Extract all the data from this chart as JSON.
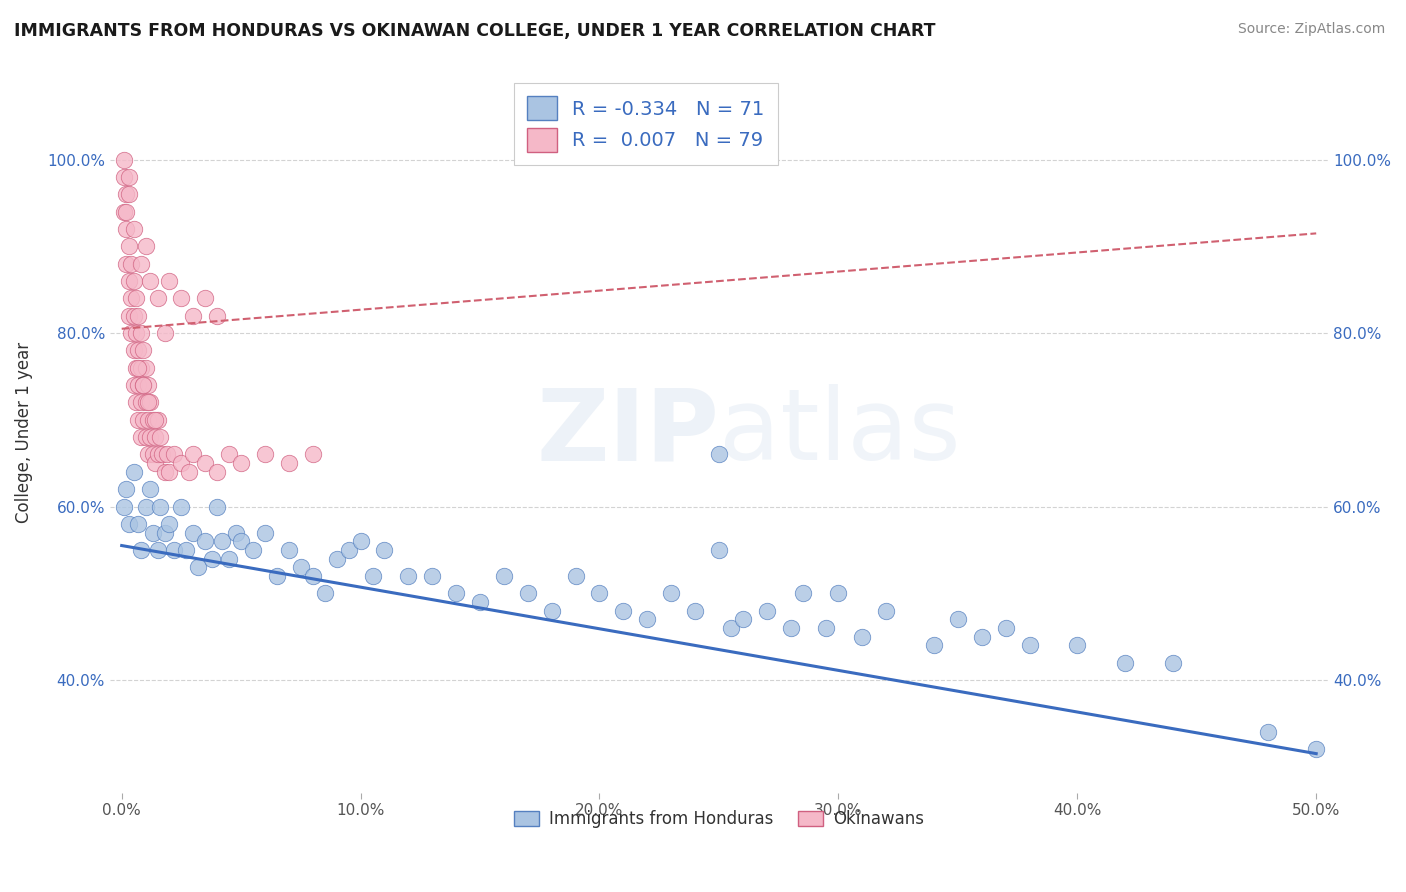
{
  "title": "IMMIGRANTS FROM HONDURAS VS OKINAWAN COLLEGE, UNDER 1 YEAR CORRELATION CHART",
  "source": "Source: ZipAtlas.com",
  "ylabel": "College, Under 1 year",
  "legend_label_blue": "Immigrants from Honduras",
  "legend_label_pink": "Okinawans",
  "R_blue": -0.334,
  "N_blue": 71,
  "R_pink": 0.007,
  "N_pink": 79,
  "xlim": [
    -0.005,
    0.505
  ],
  "ylim": [
    0.27,
    1.1
  ],
  "xticks": [
    0.0,
    0.1,
    0.2,
    0.3,
    0.4,
    0.5
  ],
  "xtick_labels": [
    "0.0%",
    "10.0%",
    "20.0%",
    "30.0%",
    "40.0%",
    "50.0%"
  ],
  "yticks": [
    0.4,
    0.6,
    0.8,
    1.0
  ],
  "ytick_labels": [
    "40.0%",
    "60.0%",
    "80.0%",
    "100.0%"
  ],
  "color_blue": "#aac4e2",
  "color_blue_edge": "#5580c0",
  "color_blue_line": "#3a6bbf",
  "color_pink": "#f5b8c8",
  "color_pink_edge": "#d06080",
  "color_pink_line": "#d06070",
  "color_grid": "#c8c8c8",
  "background_color": "#ffffff",
  "blue_trend_x": [
    0.0,
    0.5
  ],
  "blue_trend_y": [
    0.555,
    0.315
  ],
  "pink_trend_x": [
    0.0,
    0.5
  ],
  "pink_trend_y": [
    0.805,
    0.915
  ],
  "blue_dots_x": [
    0.001,
    0.002,
    0.003,
    0.005,
    0.007,
    0.008,
    0.01,
    0.012,
    0.013,
    0.015,
    0.016,
    0.018,
    0.02,
    0.022,
    0.025,
    0.027,
    0.03,
    0.032,
    0.035,
    0.038,
    0.04,
    0.042,
    0.045,
    0.048,
    0.05,
    0.055,
    0.06,
    0.065,
    0.07,
    0.075,
    0.08,
    0.085,
    0.09,
    0.095,
    0.1,
    0.105,
    0.11,
    0.12,
    0.13,
    0.14,
    0.15,
    0.16,
    0.17,
    0.18,
    0.19,
    0.2,
    0.21,
    0.22,
    0.23,
    0.24,
    0.25,
    0.255,
    0.26,
    0.27,
    0.28,
    0.285,
    0.295,
    0.3,
    0.31,
    0.32,
    0.34,
    0.35,
    0.36,
    0.37,
    0.38,
    0.4,
    0.42,
    0.44,
    0.48,
    0.5,
    0.25
  ],
  "blue_dots_y": [
    0.6,
    0.62,
    0.58,
    0.64,
    0.58,
    0.55,
    0.6,
    0.62,
    0.57,
    0.55,
    0.6,
    0.57,
    0.58,
    0.55,
    0.6,
    0.55,
    0.57,
    0.53,
    0.56,
    0.54,
    0.6,
    0.56,
    0.54,
    0.57,
    0.56,
    0.55,
    0.57,
    0.52,
    0.55,
    0.53,
    0.52,
    0.5,
    0.54,
    0.55,
    0.56,
    0.52,
    0.55,
    0.52,
    0.52,
    0.5,
    0.49,
    0.52,
    0.5,
    0.48,
    0.52,
    0.5,
    0.48,
    0.47,
    0.5,
    0.48,
    0.55,
    0.46,
    0.47,
    0.48,
    0.46,
    0.5,
    0.46,
    0.5,
    0.45,
    0.48,
    0.44,
    0.47,
    0.45,
    0.46,
    0.44,
    0.44,
    0.42,
    0.42,
    0.34,
    0.32,
    0.66
  ],
  "pink_dots_x": [
    0.001,
    0.001,
    0.002,
    0.002,
    0.002,
    0.003,
    0.003,
    0.003,
    0.003,
    0.004,
    0.004,
    0.004,
    0.005,
    0.005,
    0.005,
    0.005,
    0.006,
    0.006,
    0.006,
    0.006,
    0.007,
    0.007,
    0.007,
    0.007,
    0.008,
    0.008,
    0.008,
    0.008,
    0.009,
    0.009,
    0.009,
    0.01,
    0.01,
    0.01,
    0.011,
    0.011,
    0.011,
    0.012,
    0.012,
    0.013,
    0.013,
    0.014,
    0.014,
    0.015,
    0.015,
    0.016,
    0.017,
    0.018,
    0.019,
    0.02,
    0.022,
    0.025,
    0.028,
    0.03,
    0.035,
    0.04,
    0.045,
    0.05,
    0.06,
    0.07,
    0.08,
    0.001,
    0.002,
    0.003,
    0.005,
    0.008,
    0.01,
    0.012,
    0.015,
    0.018,
    0.02,
    0.025,
    0.03,
    0.035,
    0.04,
    0.007,
    0.009,
    0.011,
    0.014
  ],
  "pink_dots_y": [
    0.98,
    0.94,
    0.96,
    0.92,
    0.88,
    0.9,
    0.86,
    0.82,
    0.96,
    0.88,
    0.84,
    0.8,
    0.86,
    0.82,
    0.78,
    0.74,
    0.84,
    0.8,
    0.76,
    0.72,
    0.82,
    0.78,
    0.74,
    0.7,
    0.8,
    0.76,
    0.72,
    0.68,
    0.78,
    0.74,
    0.7,
    0.76,
    0.72,
    0.68,
    0.74,
    0.7,
    0.66,
    0.72,
    0.68,
    0.7,
    0.66,
    0.68,
    0.65,
    0.7,
    0.66,
    0.68,
    0.66,
    0.64,
    0.66,
    0.64,
    0.66,
    0.65,
    0.64,
    0.66,
    0.65,
    0.64,
    0.66,
    0.65,
    0.66,
    0.65,
    0.66,
    1.0,
    0.94,
    0.98,
    0.92,
    0.88,
    0.9,
    0.86,
    0.84,
    0.8,
    0.86,
    0.84,
    0.82,
    0.84,
    0.82,
    0.76,
    0.74,
    0.72,
    0.7
  ]
}
